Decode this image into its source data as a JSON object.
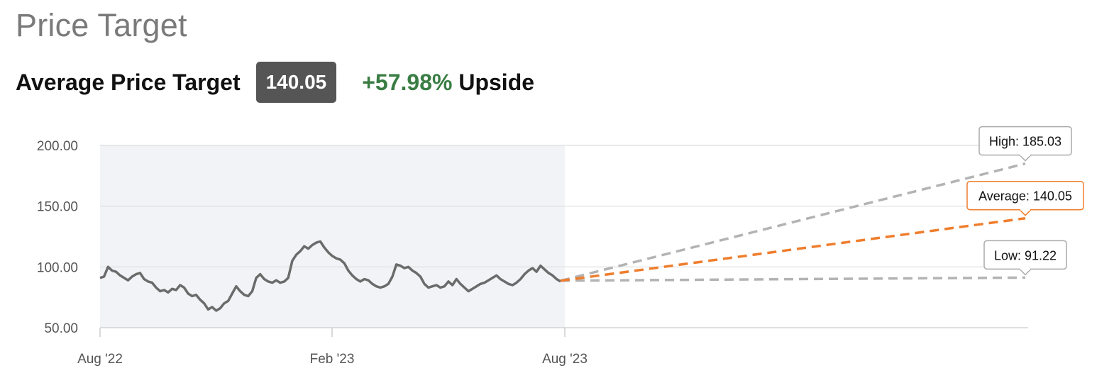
{
  "header": {
    "title": "Price Target",
    "avg_label": "Average Price Target",
    "avg_value": "140.05",
    "upside_pct": "+57.98%",
    "upside_word": "Upside"
  },
  "colors": {
    "history": "#6b6b6b",
    "average": "#ef7d2c",
    "high_low": "#b3b3b3",
    "upside": "#3a7d44",
    "history_bg": "#f2f3f6"
  },
  "chart_data": {
    "type": "line",
    "y_ticks": [
      "200.00",
      "150.00",
      "100.00",
      "50.00"
    ],
    "ylim": [
      50,
      200
    ],
    "x_ticks": [
      "Aug '22",
      "Feb '23",
      "Aug '23"
    ],
    "series": [
      {
        "role": "history",
        "x_range": [
          "Aug '22",
          "Aug '23"
        ],
        "values": [
          91,
          92,
          100,
          97,
          96,
          93,
          91,
          89,
          92,
          94,
          95,
          90,
          88,
          87,
          83,
          80,
          81,
          79,
          82,
          81,
          85,
          83,
          78,
          76,
          77,
          73,
          70,
          65,
          67,
          64,
          66,
          70,
          72,
          78,
          84,
          80,
          77,
          76,
          80,
          91,
          94,
          90,
          88,
          87,
          89,
          87,
          88,
          91,
          105,
          110,
          113,
          117,
          115,
          118,
          120,
          121,
          116,
          112,
          109,
          107,
          106,
          103,
          97,
          93,
          90,
          88,
          90,
          89,
          86,
          84,
          83,
          84,
          86,
          92,
          102,
          101,
          99,
          100,
          97,
          95,
          92,
          86,
          83,
          84,
          85,
          83,
          84,
          88,
          85,
          90,
          86,
          83,
          80,
          82,
          84,
          86,
          87,
          89,
          91,
          93,
          90,
          88,
          86,
          85,
          87,
          90,
          94,
          97,
          99,
          96,
          101,
          98,
          95,
          93,
          90,
          88
        ],
        "start_value": 91,
        "end_value": 88.65
      },
      {
        "role": "high",
        "label": "High: 185.03",
        "start": 88.65,
        "end": 185.03
      },
      {
        "role": "average",
        "label": "Average: 140.05",
        "start": 88.65,
        "end": 140.05
      },
      {
        "role": "low",
        "label": "Low: 91.22",
        "start": 88.65,
        "end": 91.22
      }
    ]
  }
}
